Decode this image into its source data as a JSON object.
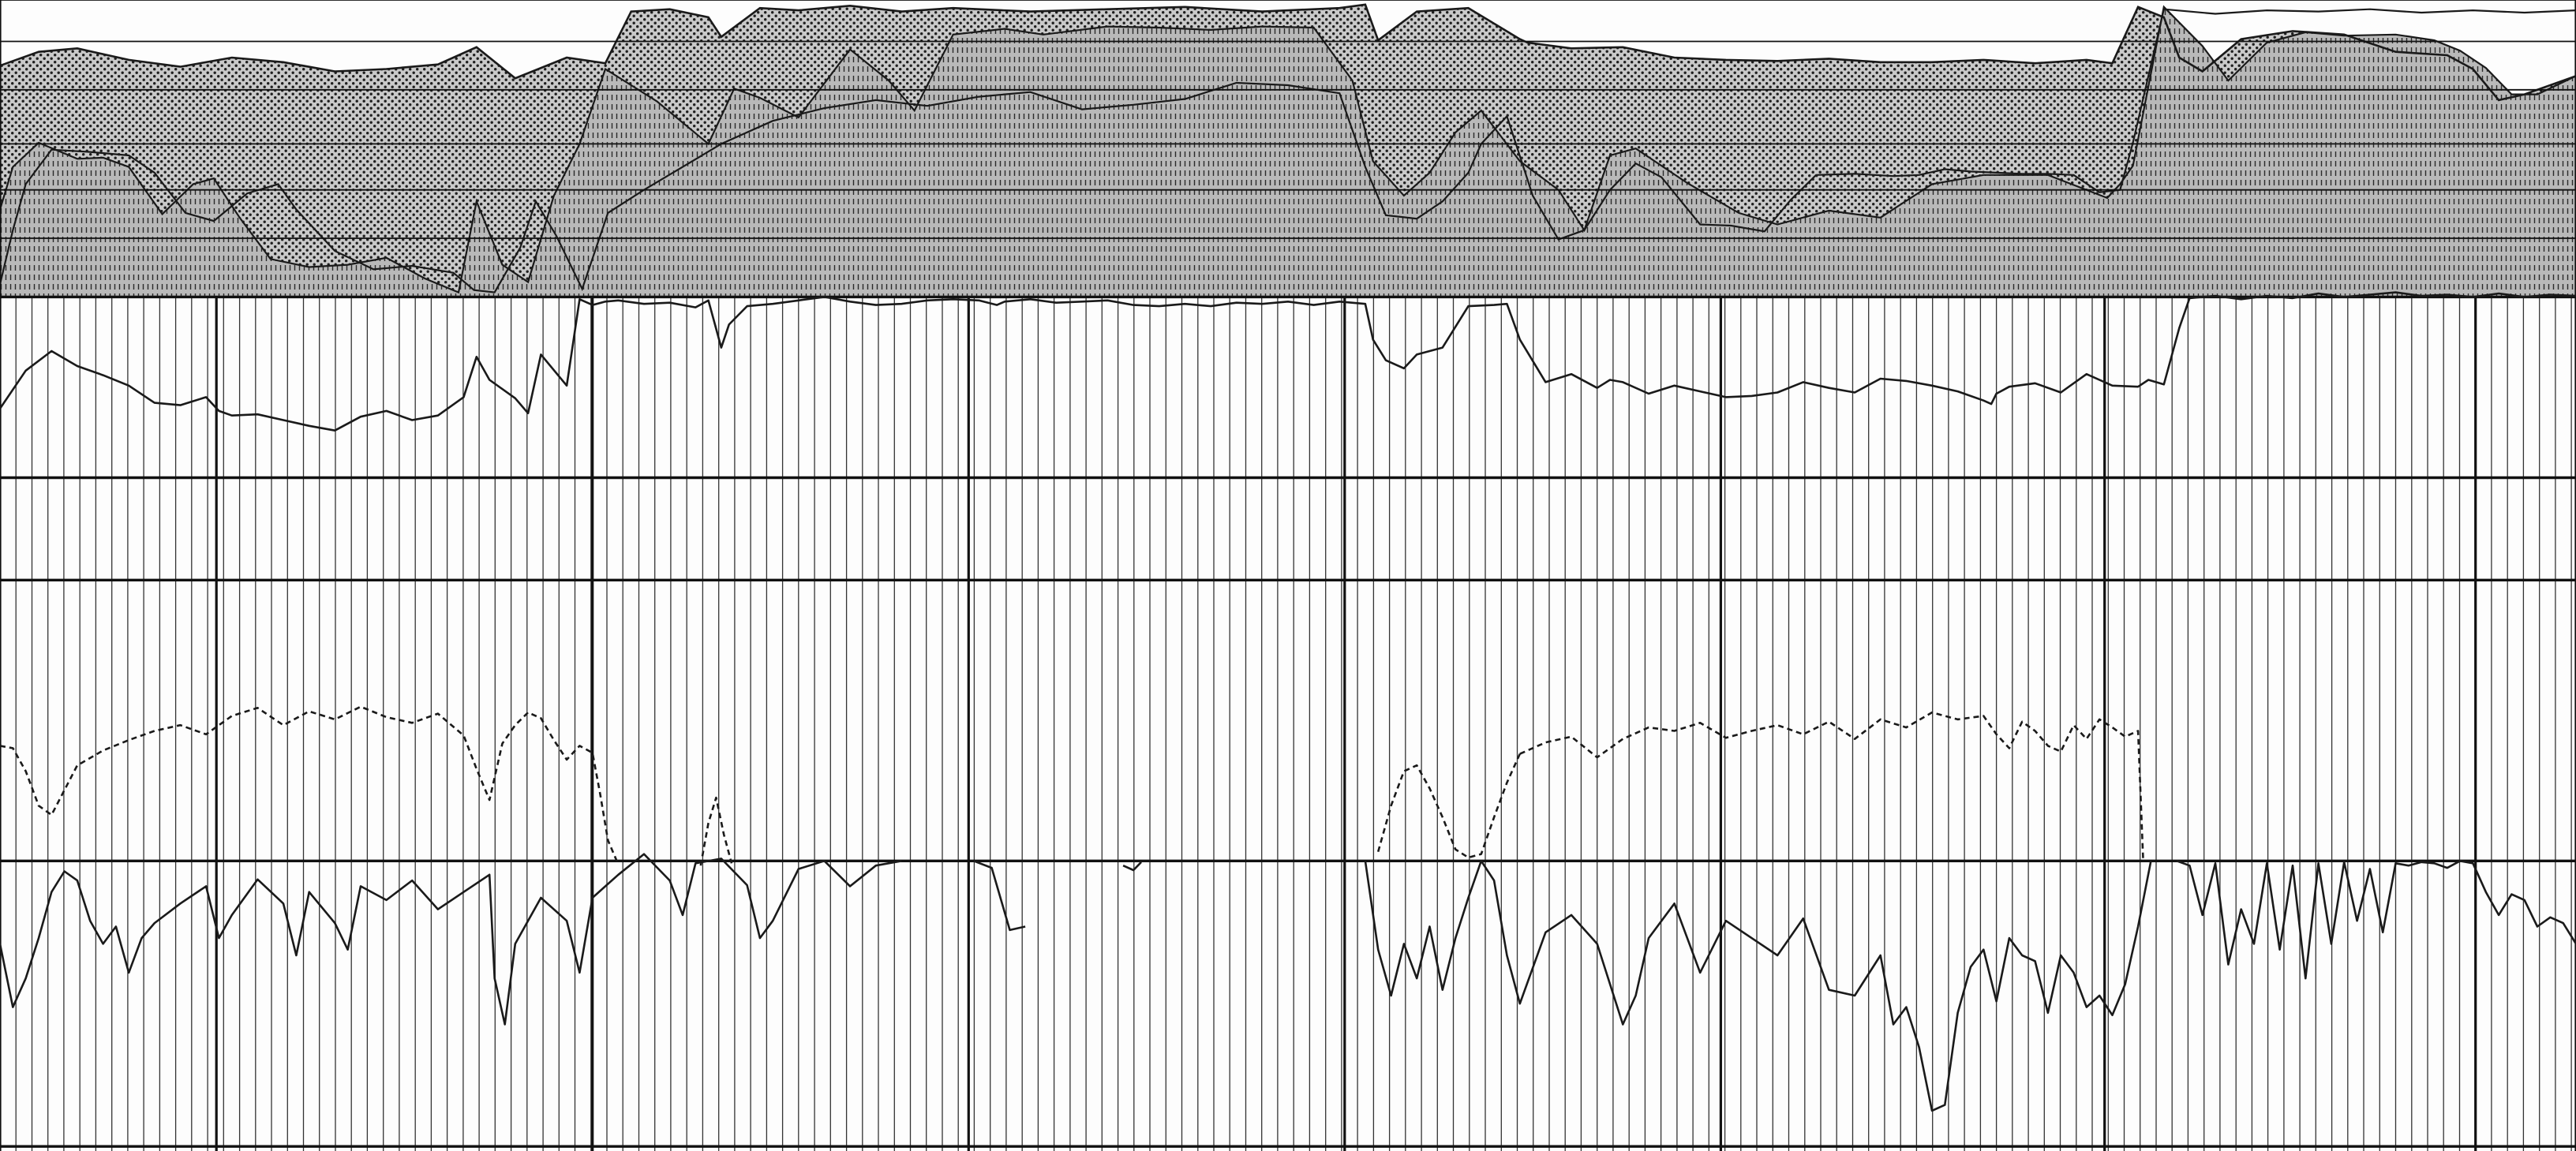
{
  "colors": {
    "background": "#fdfdfd",
    "ink": "#1a1a1a",
    "grid_minor": "#333333",
    "grid_major": "#111111",
    "band_dotted_fill": "#c9c9c9",
    "band_striped_fill": "#b9b9b9"
  },
  "chart_data": {
    "type": "line",
    "title": "",
    "xlabel": "",
    "ylabel": "",
    "grid": true,
    "legend": "none",
    "x_range": [
      0,
      100
    ],
    "y_range": [
      0,
      100
    ],
    "x_major_divisions": [
      0,
      8.4,
      23,
      37.6,
      52.2,
      66.8,
      81.7,
      96.1,
      100
    ],
    "x_minor_step": 0.62,
    "horizontal_rules": [
      100,
      96.4,
      92.2,
      87.5,
      83.5,
      79.3,
      74.2,
      58.5,
      49.6,
      25.2,
      0.4
    ],
    "top_band": {
      "name": "",
      "y_range": [
        74.2,
        100
      ],
      "upper_envelope": {
        "x": [
          0,
          1.5,
          3,
          5,
          7,
          9,
          11,
          13,
          15,
          17,
          18.5,
          20,
          22,
          23.5,
          24.5,
          26,
          27.5,
          28,
          29.5,
          31,
          33,
          35,
          37,
          40,
          43,
          46,
          49,
          52,
          53,
          53.5,
          55,
          57,
          59,
          59.3,
          61,
          63,
          65,
          67,
          69,
          71,
          73,
          75,
          77,
          79,
          81,
          82,
          83,
          84,
          84.6,
          85.5,
          87,
          89,
          91,
          93,
          95,
          96,
          97,
          98,
          100
        ],
        "y": [
          94.3,
          95.5,
          95.8,
          94.8,
          94.2,
          95.0,
          94.6,
          93.8,
          94.0,
          94.4,
          95.9,
          93.2,
          95.0,
          94.5,
          99.0,
          99.2,
          98.5,
          96.8,
          99.3,
          99.1,
          99.5,
          99.0,
          99.3,
          99.0,
          99.2,
          99.4,
          99.0,
          99.3,
          99.6,
          96.5,
          99.0,
          99.3,
          96.6,
          96.3,
          95.8,
          95.9,
          95.0,
          94.8,
          94.7,
          94.9,
          94.6,
          94.6,
          94.8,
          94.5,
          94.8,
          94.5,
          99.4,
          98.5,
          95.0,
          93.8,
          96.6,
          97.3,
          97.0,
          95.5,
          95.2,
          94.0,
          91.3,
          91.8,
          93.4
        ]
      },
      "boundary": {
        "x": [
          0,
          0.5,
          1.5,
          3,
          4,
          5,
          6.3,
          7.5,
          8.3,
          9.3,
          10.5,
          12,
          13.5,
          15,
          16.5,
          17.8,
          18.5,
          19.5,
          20.5,
          21.5,
          22.5,
          23.5,
          25.5,
          27.5,
          28.5,
          29.5,
          31,
          33,
          34.5,
          35.5,
          37,
          39,
          40.5,
          43,
          45,
          47,
          49,
          51,
          52.5,
          53.3,
          54.5,
          55.5,
          56.5,
          57.5,
          59,
          60.5,
          61.5,
          62.5,
          63.5,
          65.5,
          67.5,
          69,
          71,
          73,
          75,
          77,
          79.5,
          81.8,
          82.3,
          82.8,
          84,
          85.5,
          86.5,
          88,
          89.5,
          91,
          93,
          94.5,
          95.5,
          96.5,
          97.5,
          98.5,
          100
        ],
        "y": [
          81.8,
          85.5,
          87.6,
          86.2,
          86.3,
          85.5,
          81.4,
          84.0,
          84.5,
          81.1,
          77.5,
          76.8,
          77.0,
          77.6,
          75.8,
          74.6,
          82.5,
          77.0,
          75.5,
          83.0,
          87.5,
          94.0,
          91.2,
          87.5,
          92.3,
          91.5,
          89.8,
          95.7,
          93.0,
          90.4,
          97.0,
          97.5,
          97.0,
          97.7,
          97.6,
          97.4,
          97.7,
          97.6,
          93.0,
          86.0,
          83.0,
          85.0,
          88.5,
          90.4,
          86.0,
          83.5,
          80.0,
          86.5,
          87.1,
          84.1,
          81.5,
          80.5,
          81.7,
          81.1,
          84.0,
          84.8,
          84.8,
          82.8,
          84.0,
          85.6,
          99.4,
          96.0,
          93.0,
          96.3,
          97.2,
          96.9,
          97.0,
          96.5,
          95.6,
          94.1,
          91.8,
          91.8,
          93.4
        ]
      },
      "lower_envelope": {
        "x": [
          0,
          0.5,
          1,
          2,
          3.5,
          5,
          6,
          7.2,
          8.3,
          9.6,
          10.8,
          11.5,
          13,
          14.5,
          16,
          17.6,
          18.4,
          19.2,
          20.2,
          20.8,
          21.6,
          22.6,
          23.6,
          25,
          26.5,
          28,
          30,
          32,
          34,
          36,
          38,
          40,
          42,
          44,
          46,
          48,
          50,
          52,
          53,
          53.8,
          55,
          56,
          57,
          57.5,
          58.5,
          59.5,
          60.5,
          61.5,
          62.5,
          63.5,
          64.5,
          66,
          67.2,
          68.5,
          69.5,
          70.5,
          72,
          73.5,
          74.5,
          75.5,
          76.5,
          77.5,
          78.5,
          79.5,
          80.5,
          81.5,
          82.3,
          82.8,
          84,
          86,
          88,
          90,
          92,
          94,
          96,
          98,
          100
        ],
        "y": [
          75.3,
          80.0,
          84.0,
          87.0,
          86.8,
          86.5,
          85.0,
          81.5,
          80.8,
          83.2,
          84.0,
          81.8,
          78.2,
          76.6,
          76.9,
          76.3,
          74.8,
          74.6,
          78.5,
          82.5,
          79.5,
          74.9,
          81.5,
          83.5,
          85.5,
          87.5,
          89.5,
          90.6,
          91.3,
          90.8,
          91.6,
          92.0,
          90.5,
          90.9,
          91.4,
          92.8,
          92.6,
          91.9,
          85.5,
          81.3,
          81.0,
          82.5,
          85.0,
          87.5,
          89.9,
          83.0,
          79.2,
          80.0,
          83.5,
          85.8,
          84.6,
          80.5,
          80.4,
          79.9,
          82.6,
          84.8,
          84.9,
          84.7,
          84.8,
          85.3,
          85.1,
          85.0,
          84.9,
          84.9,
          84.8,
          83.3,
          83.5,
          87.6,
          99.2,
          98.8,
          99.1,
          99.0,
          99.2,
          98.9,
          99.1,
          98.9,
          99.1
        ]
      }
    },
    "series": [
      {
        "name": "",
        "style": "solid",
        "x": [
          0,
          1,
          2,
          3,
          4,
          5,
          6,
          7,
          8,
          8.5,
          9,
          10,
          11,
          12,
          13,
          14,
          15,
          16,
          17,
          18,
          18.5,
          19,
          20,
          20.5,
          21,
          22,
          22.5,
          23,
          23.5,
          24,
          25,
          26,
          27,
          27.5,
          28,
          28.3,
          29,
          30,
          31,
          32,
          33,
          34,
          35,
          36,
          37,
          38,
          38.7,
          39,
          40,
          41,
          42,
          43,
          44,
          45,
          46,
          47,
          48,
          49,
          50,
          51,
          52,
          53,
          53.3,
          53.8,
          54.5,
          55,
          56,
          57,
          58,
          58.5,
          59,
          60,
          61,
          62,
          62.5,
          63,
          64,
          65,
          66,
          67,
          68,
          69,
          70,
          71,
          72,
          73,
          74,
          75,
          76,
          77,
          77.3,
          77.5,
          78,
          79,
          80,
          81,
          82,
          83,
          83.4,
          84,
          84.6,
          85,
          86,
          87,
          88,
          89,
          90,
          91,
          92,
          93,
          94,
          95,
          96,
          97,
          98,
          99,
          100
        ],
        "y": [
          64.5,
          67.8,
          69.5,
          68.2,
          67.4,
          66.5,
          65.0,
          64.8,
          65.5,
          64.3,
          63.9,
          64.0,
          63.5,
          63.0,
          62.6,
          63.8,
          64.3,
          63.5,
          63.9,
          65.5,
          69.0,
          67.0,
          65.4,
          64.1,
          69.2,
          66.5,
          74.0,
          73.5,
          73.8,
          73.9,
          73.6,
          73.7,
          73.3,
          73.9,
          69.8,
          71.8,
          73.4,
          73.6,
          73.9,
          74.2,
          73.8,
          73.5,
          73.6,
          73.9,
          74.0,
          73.9,
          73.5,
          73.8,
          74.0,
          73.7,
          73.8,
          73.9,
          73.5,
          73.4,
          73.6,
          73.4,
          73.7,
          73.6,
          73.8,
          73.5,
          73.8,
          73.6,
          70.5,
          68.7,
          68.0,
          69.2,
          69.8,
          73.4,
          73.5,
          73.6,
          70.5,
          66.8,
          67.5,
          66.3,
          67.0,
          66.8,
          65.8,
          66.5,
          66.0,
          65.5,
          65.6,
          65.9,
          66.8,
          66.3,
          65.9,
          67.1,
          66.9,
          66.5,
          66.0,
          65.2,
          64.9,
          65.8,
          66.4,
          66.7,
          65.9,
          67.5,
          66.5,
          66.4,
          67.0,
          66.6,
          71.5,
          74.1,
          74.3,
          74.0,
          74.3,
          74.1,
          74.5,
          74.2,
          74.4,
          74.6,
          74.3,
          74.4,
          74.2,
          74.5,
          74.2,
          74.4,
          74.3
        ]
      },
      {
        "name": "",
        "style": "dashed",
        "x": [
          0,
          0.5,
          1,
          1.5,
          2,
          3,
          4,
          5,
          6,
          7,
          8,
          9,
          10,
          11,
          12,
          13,
          14,
          15,
          16,
          17,
          18,
          18.5,
          19,
          19.5,
          20,
          20.5,
          21,
          21.5,
          22,
          22.5,
          23,
          23.3,
          23.6,
          24
        ],
        "y": [
          35.2,
          35.0,
          33.0,
          30.0,
          29.2,
          33.5,
          34.8,
          35.7,
          36.5,
          37.0,
          36.2,
          37.8,
          38.5,
          37.0,
          38.2,
          37.5,
          38.6,
          37.7,
          37.2,
          38.0,
          36.1,
          33.2,
          30.5,
          35.4,
          37.0,
          38.1,
          37.6,
          35.7,
          34.0,
          35.2,
          34.6,
          31.0,
          27.0,
          24.9
        ],
        "segments": [
          {
            "x": [
              27.2,
              27.5,
              27.8,
              28.1,
              28.4
            ],
            "y": [
              24.8,
              28.5,
              30.7,
              27.5,
              25.0
            ]
          },
          {
            "x": [
              53.5,
              54,
              54.5,
              55,
              55.5,
              56,
              56.5,
              57,
              57.5,
              58,
              58.5,
              59
            ],
            "y": [
              26.0,
              30.0,
              33.0,
              33.5,
              31.5,
              29.0,
              26.2,
              25.5,
              25.8,
              29.0,
              32.0,
              34.5
            ]
          },
          {
            "x": [
              59,
              60,
              61,
              62,
              63,
              64,
              65,
              66,
              67,
              68,
              69,
              70,
              71,
              72,
              73,
              74,
              75,
              76,
              77,
              77.5,
              78,
              78.5,
              79,
              79.5,
              80,
              80.5,
              81,
              81.5,
              82,
              82.5,
              83,
              83.2
            ],
            "y": [
              34.5,
              35.5,
              36.0,
              34.2,
              35.8,
              36.8,
              36.5,
              37.2,
              35.9,
              36.5,
              37.0,
              36.2,
              37.3,
              35.8,
              37.5,
              36.8,
              38.1,
              37.5,
              37.8,
              36.2,
              35.0,
              37.3,
              36.5,
              35.2,
              34.7,
              37.0,
              35.8,
              37.5,
              36.8,
              36.0,
              36.5,
              25.2
            ]
          }
        ]
      },
      {
        "name": "",
        "style": "solid",
        "x": [
          0,
          0.5,
          1,
          1.5,
          2,
          2.5,
          3,
          3.5,
          4,
          4.5,
          5,
          5.5,
          6,
          7,
          8,
          8.5,
          9,
          10,
          11,
          11.5,
          12,
          13,
          13.5,
          14,
          15,
          16,
          17,
          18,
          19,
          19.2,
          19.6,
          20,
          21,
          22,
          22.5,
          23,
          24,
          25,
          26,
          26.5,
          27,
          28,
          29,
          29.5,
          30,
          31,
          32,
          33,
          34,
          35
        ],
        "y": [
          18.0,
          12.5,
          15.0,
          18.5,
          22.5,
          24.3,
          23.5,
          20.0,
          18.0,
          19.5,
          15.5,
          18.5,
          19.8,
          21.5,
          23.0,
          18.5,
          20.5,
          23.6,
          21.5,
          17.0,
          22.5,
          19.8,
          17.5,
          23.0,
          21.8,
          23.5,
          21.0,
          22.5,
          24.0,
          15.0,
          11.0,
          18.0,
          22.0,
          20.0,
          15.5,
          22.0,
          24.0,
          25.8,
          23.5,
          20.5,
          25.0,
          25.4,
          23.1,
          18.5,
          20.0,
          24.5,
          25.2,
          23.0,
          24.8,
          25.2
        ],
        "segments": [
          {
            "x": [
              37.8,
              38.5,
              39.2,
              39.8
            ],
            "y": [
              25.2,
              24.6,
              19.2,
              19.5
            ]
          },
          {
            "x": [
              43.6,
              44.0,
              44.3
            ],
            "y": [
              24.8,
              24.4,
              25.1
            ]
          },
          {
            "x": [
              53,
              53.5,
              54,
              54.5,
              55,
              55.5,
              56,
              56.5,
              57,
              57.5,
              58,
              58.5,
              59,
              60,
              61,
              62,
              63,
              63.5,
              64,
              65,
              66,
              67,
              68,
              69,
              70,
              71,
              72,
              73,
              73.5,
              74,
              74.5,
              75,
              75.5,
              76,
              76.5,
              77,
              77.5,
              78,
              78.5,
              79,
              79.5,
              80,
              80.5,
              81,
              81.5,
              82,
              82.5,
              83,
              83.5
            ],
            "y": [
              25.2,
              17.5,
              13.5,
              18.0,
              15.0,
              19.5,
              14.0,
              18.5,
              22.0,
              25.2,
              23.5,
              17.0,
              12.8,
              19.0,
              20.5,
              18.0,
              11.0,
              13.5,
              18.5,
              21.5,
              15.5,
              20.0,
              18.5,
              17.0,
              20.2,
              14.0,
              13.5,
              17.0,
              11.0,
              12.5,
              9.0,
              3.5,
              4.0,
              12.0,
              16.0,
              17.5,
              13.0,
              18.5,
              17.0,
              16.5,
              12.0,
              17.0,
              15.5,
              12.5,
              13.5,
              11.8,
              14.5,
              19.5,
              25.2
            ]
          },
          {
            "x": [
              84.5,
              85,
              85.5,
              86,
              86.5,
              87,
              87.5,
              88,
              88.5,
              89,
              89.5,
              90,
              90.5,
              91,
              91.5,
              92,
              92.5,
              93,
              93.5,
              94,
              94.5,
              95,
              95.5,
              96,
              96.5,
              97,
              97.5,
              98,
              98.5,
              99,
              99.5,
              100
            ],
            "y": [
              25.2,
              24.8,
              20.5,
              25.0,
              16.2,
              21.0,
              18.0,
              25.0,
              17.5,
              24.8,
              15.0,
              25.0,
              18.0,
              25.1,
              20.0,
              24.5,
              19.0,
              25.0,
              24.8,
              25.1,
              25.0,
              24.6,
              25.2,
              25.0,
              22.5,
              20.5,
              22.3,
              21.8,
              19.5,
              20.3,
              19.8,
              18.0
            ]
          }
        ]
      }
    ]
  }
}
